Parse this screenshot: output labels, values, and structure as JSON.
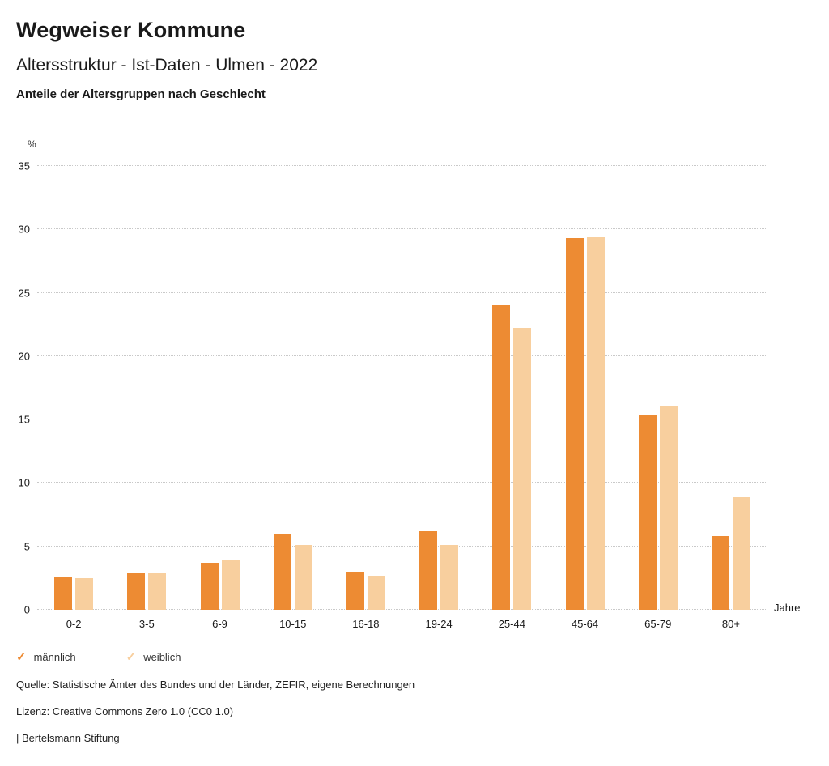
{
  "header": {
    "title": "Wegweiser Kommune",
    "subtitle": "Altersstruktur - Ist-Daten - Ulmen - 2022",
    "chart_heading": "Anteile der Altersgruppen nach Geschlecht"
  },
  "chart_data": {
    "type": "bar",
    "title": "Anteile der Altersgruppen nach Geschlecht",
    "xlabel": "Jahre",
    "ylabel": "%",
    "ylim": [
      0,
      35
    ],
    "ytick_step": 5,
    "grid": true,
    "gridline_style": "dotted",
    "legend_position": "bottom",
    "categories": [
      "0-2",
      "3-5",
      "6-9",
      "10-15",
      "16-18",
      "19-24",
      "25-44",
      "45-64",
      "65-79",
      "80+"
    ],
    "series": [
      {
        "name": "männlich",
        "color": "#ED8B33",
        "values": [
          2.6,
          2.9,
          3.7,
          6.0,
          3.0,
          6.2,
          24.0,
          29.3,
          15.4,
          5.8
        ]
      },
      {
        "name": "weiblich",
        "color": "#F8CF9E",
        "values": [
          2.5,
          2.9,
          3.9,
          5.1,
          2.7,
          5.1,
          22.2,
          29.4,
          16.1,
          8.9
        ]
      }
    ]
  },
  "footer": {
    "source": "Quelle: Statistische Ämter des Bundes und der Länder, ZEFIR, eigene Berechnungen",
    "license": "Lizenz: Creative Commons Zero 1.0 (CC0 1.0)",
    "attribution": "| Bertelsmann Stiftung"
  }
}
